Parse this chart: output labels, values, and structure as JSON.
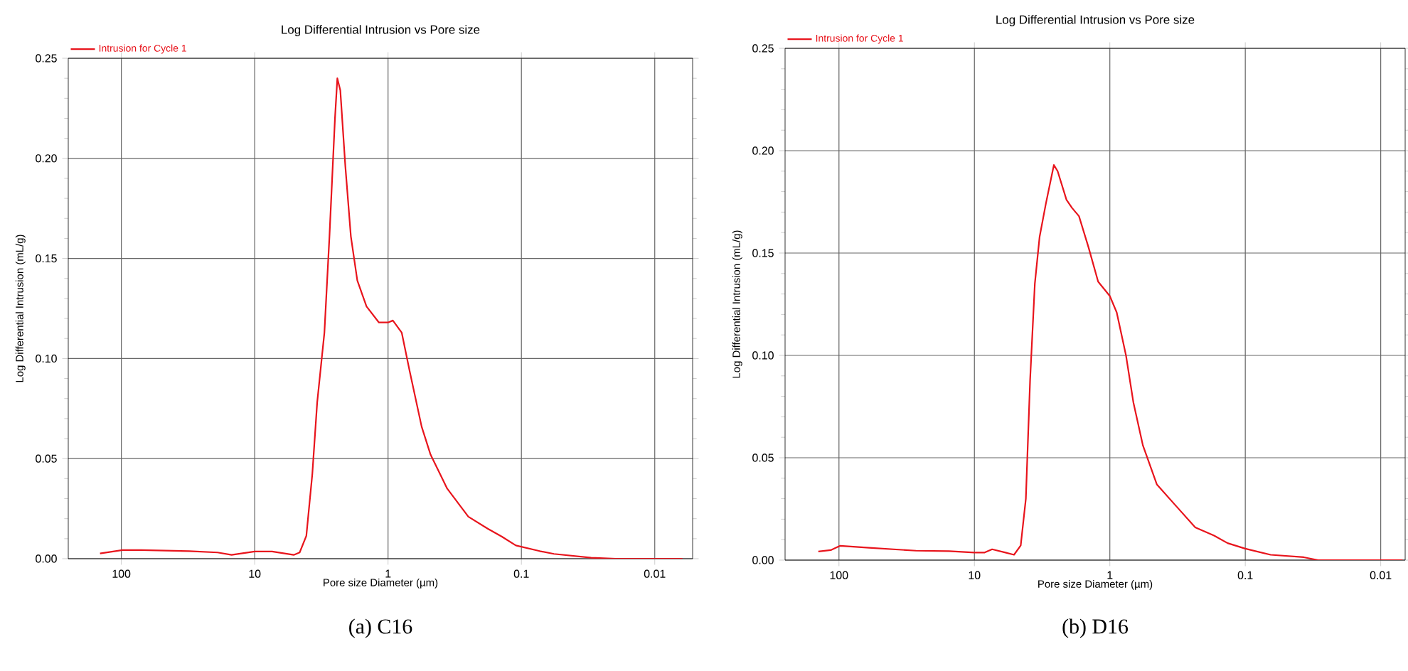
{
  "chart_data": [
    {
      "type": "line",
      "title": "Log Differential Intrusion vs Pore size",
      "xlabel": "Pore size Diameter (µm)",
      "ylabel": "Log Differential Intrusion (mL/g)",
      "log": "x",
      "xlim": [
        250,
        0.0052
      ],
      "ylim": [
        0,
        0.25
      ],
      "xticks": [
        100,
        10,
        1,
        0.1,
        0.01
      ],
      "yticks": [
        {
          "value": 0,
          "label": "0.00"
        },
        {
          "value": 0.05,
          "label": "0.05"
        },
        {
          "value": 0.1,
          "label": "0.10"
        },
        {
          "value": 0.15,
          "label": "0.15"
        },
        {
          "value": 0.2,
          "label": "0.20"
        },
        {
          "value": 0.25,
          "label": "0.25"
        }
      ],
      "grid": true,
      "legend": "top left",
      "annotations": [
        "(a) C16"
      ],
      "series": [
        {
          "name": "Intrusion for Cycle 1",
          "color": "#e8141c",
          "x": [
            144.5,
            98,
            71,
            31,
            19,
            14.9,
            10,
            7.4,
            5.1,
            4.6,
            4.1,
            3.7,
            3.4,
            3.0,
            2.75,
            2.5,
            2.4,
            2.28,
            2.09,
            1.9,
            1.7,
            1.45,
            1.17,
            1.0,
            0.92,
            0.79,
            0.69,
            0.56,
            0.48,
            0.36,
            0.25,
            0.179,
            0.14,
            0.11,
            0.073,
            0.057,
            0.03,
            0.0195,
            0.0062
          ],
          "values": [
            0.0026,
            0.0043,
            0.0043,
            0.0038,
            0.0031,
            0.0019,
            0.0036,
            0.0036,
            0.0019,
            0.0031,
            0.0114,
            0.042,
            0.078,
            0.113,
            0.161,
            0.22,
            0.24,
            0.234,
            0.196,
            0.161,
            0.139,
            0.126,
            0.118,
            0.118,
            0.119,
            0.113,
            0.094,
            0.066,
            0.052,
            0.035,
            0.021,
            0.015,
            0.011,
            0.0066,
            0.0038,
            0.0024,
            0.0005,
            0,
            0
          ]
        }
      ]
    },
    {
      "type": "line",
      "title": "Log Differential Intrusion vs Pore size",
      "xlabel": "Pore size Diameter (µm)",
      "ylabel": "Log Differential Intrusion (mL/g)",
      "log": "x",
      "xlim": [
        250,
        0.0066
      ],
      "ylim": [
        0,
        0.25
      ],
      "xticks": [
        100,
        10,
        1,
        0.1,
        0.01
      ],
      "yticks": [
        {
          "value": 0,
          "label": "0.00"
        },
        {
          "value": 0.05,
          "label": "0.05"
        },
        {
          "value": 0.1,
          "label": "0.10"
        },
        {
          "value": 0.15,
          "label": "0.15"
        },
        {
          "value": 0.2,
          "label": "0.20"
        },
        {
          "value": 0.25,
          "label": "0.25"
        }
      ],
      "grid": true,
      "legend": "top left",
      "annotations": [
        "(b) D16"
      ],
      "series": [
        {
          "name": "Intrusion for Cycle 1",
          "color": "#e8141c",
          "x": [
            142,
            115,
            98,
            60,
            27,
            15.4,
            10,
            8.4,
            7.4,
            5.9,
            5.1,
            4.55,
            4.17,
            3.88,
            3.58,
            3.3,
            2.97,
            2.59,
            2.43,
            2.09,
            1.9,
            1.69,
            1.44,
            1.22,
            1.0,
            0.89,
            0.76,
            0.67,
            0.57,
            0.45,
            0.32,
            0.234,
            0.17,
            0.135,
            0.1,
            0.065,
            0.037,
            0.029,
            0.0069
          ],
          "values": [
            0.0042,
            0.0049,
            0.007,
            0.006,
            0.0046,
            0.0044,
            0.0037,
            0.0037,
            0.0053,
            0.0037,
            0.0026,
            0.0072,
            0.03,
            0.088,
            0.135,
            0.158,
            0.174,
            0.193,
            0.19,
            0.176,
            0.172,
            0.168,
            0.153,
            0.136,
            0.129,
            0.121,
            0.1,
            0.077,
            0.056,
            0.037,
            0.026,
            0.016,
            0.012,
            0.0083,
            0.0056,
            0.0026,
            0.0014,
            0,
            0
          ]
        }
      ]
    }
  ]
}
